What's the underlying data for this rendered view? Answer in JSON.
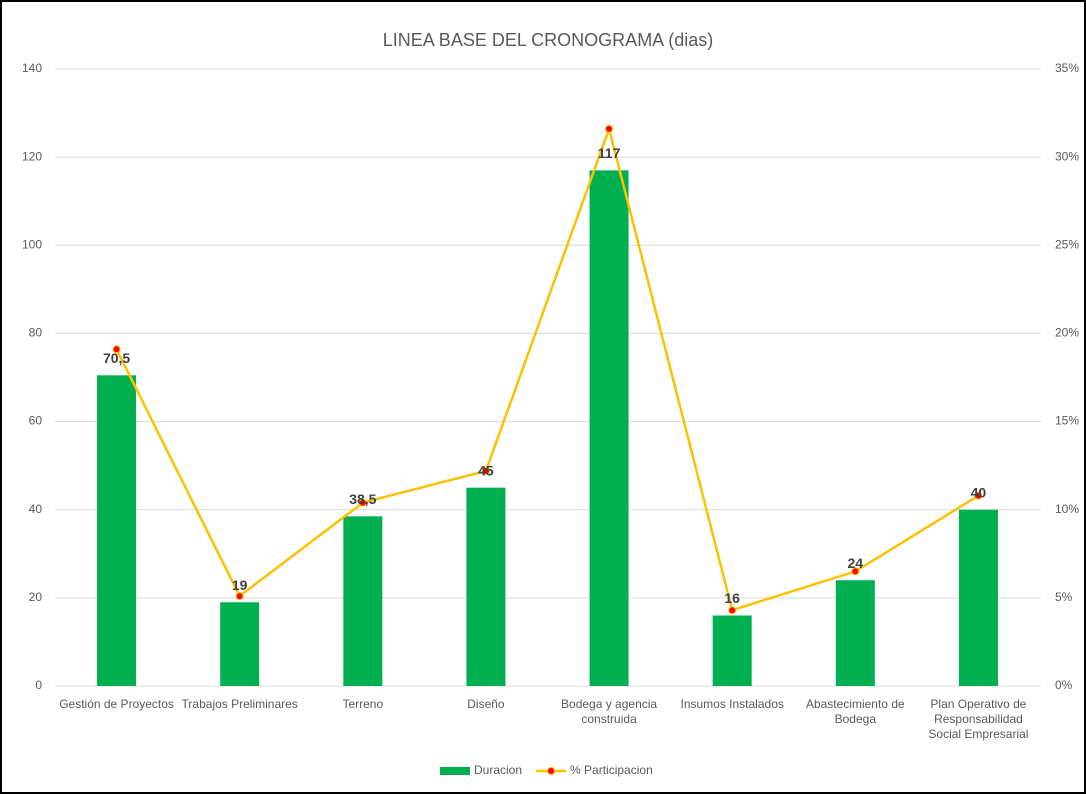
{
  "chart_data": {
    "type": "bar",
    "title": "LINEA BASE DEL CRONOGRAMA (dias)",
    "categories": [
      "Gestión de Proyectos",
      "Trabajos Preliminares",
      "Terreno",
      "Diseño",
      "Bodega y agencia construida",
      "Insumos Instalados",
      "Abastecimiento de Bodega",
      "Plan Operativo de Responsabilidad Social Empresarial"
    ],
    "series": [
      {
        "name": "Duracion",
        "color": "#00b050",
        "type": "bar",
        "values": [
          70.5,
          19,
          38.5,
          45,
          117,
          16,
          24,
          40
        ],
        "value_labels": [
          "70,5",
          "19",
          "38,5",
          "45",
          "117",
          "16",
          "24",
          "40"
        ]
      },
      {
        "name": "% Participacion",
        "color": "#ffc000",
        "marker_color": "#ff0000",
        "type": "line",
        "axis": "y2",
        "values": [
          19.1,
          5.1,
          10.4,
          12.2,
          31.6,
          4.3,
          6.5,
          10.8
        ]
      }
    ],
    "ylim": [
      0,
      140
    ],
    "yticks": [
      0,
      20,
      40,
      60,
      80,
      100,
      120,
      140
    ],
    "y2lim": [
      0,
      35
    ],
    "y2ticks": [
      {
        "value": 0,
        "label": "0%"
      },
      {
        "value": 5,
        "label": "5%"
      },
      {
        "value": 10,
        "label": "10%"
      },
      {
        "value": 15,
        "label": "15%"
      },
      {
        "value": 20,
        "label": "20%"
      },
      {
        "value": 25,
        "label": "25%"
      },
      {
        "value": 30,
        "label": "30%"
      },
      {
        "value": 35,
        "label": "35%"
      }
    ],
    "grid": true,
    "legend": "bottom"
  }
}
